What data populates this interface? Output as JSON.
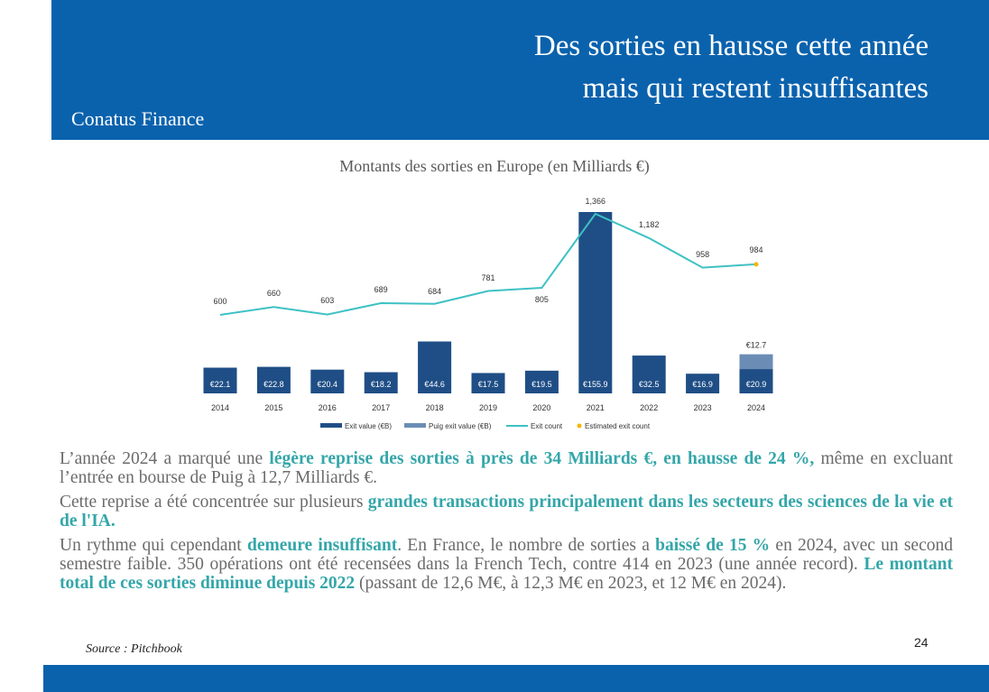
{
  "header": {
    "title_line1": "Des sorties en hausse cette année",
    "title_line2": "mais qui restent insuffisantes",
    "brand": "Conatus Finance"
  },
  "chart_data": {
    "type": "bar",
    "title": "Montants des sorties en Europe (en Milliards €)",
    "categories": [
      "2014",
      "2015",
      "2016",
      "2017",
      "2018",
      "2019",
      "2020",
      "2021",
      "2022",
      "2023",
      "2024"
    ],
    "series": [
      {
        "name": "Exit value (€B)",
        "kind": "bar",
        "color": "#1f4e86",
        "values": [
          22.1,
          22.8,
          20.4,
          18.2,
          44.6,
          17.5,
          19.5,
          155.9,
          32.5,
          16.9,
          20.9
        ],
        "labels": [
          "€22.1",
          "€22.8",
          "€20.4",
          "€18.2",
          "€44.6",
          "€17.5",
          "€19.5",
          "€155.9",
          "€32.5",
          "€16.9",
          "€20.9"
        ]
      },
      {
        "name": "Puig exit value (€B)",
        "kind": "bar-stacked",
        "color": "#6b8db5",
        "values": [
          0,
          0,
          0,
          0,
          0,
          0,
          0,
          0,
          0,
          0,
          12.7
        ],
        "labels": [
          "",
          "",
          "",
          "",
          "",
          "",
          "",
          "",
          "",
          "",
          "€12.7"
        ]
      },
      {
        "name": "Exit count",
        "kind": "line",
        "color": "#3ec1c4",
        "values": [
          600,
          660,
          603,
          689,
          684,
          781,
          805,
          1366,
          1182,
          958,
          984
        ],
        "labels": [
          "600",
          "660",
          "603",
          "689",
          "684",
          "781",
          "805",
          "1,366",
          "1,182",
          "958",
          "984"
        ]
      },
      {
        "name": "Estimated exit count",
        "kind": "point",
        "color": "#f2b705",
        "values": [
          null,
          null,
          null,
          null,
          null,
          null,
          null,
          null,
          null,
          null,
          984
        ]
      }
    ]
  },
  "body": {
    "p1_a": "L’année 2024 a marqué une ",
    "p1_b": "légère reprise des sorties à près de 34 Milliards €, en hausse de 24 %,",
    "p1_c": " même en excluant l’entrée en bourse de Puig à 12,7 Milliards €.",
    "p2_a": "Cette reprise a été concentrée sur plusieurs ",
    "p2_b": "grandes transactions principalement dans les secteurs des sciences de la vie et de l'IA.",
    "p3_a": "Un rythme qui cependant ",
    "p3_b": "demeure insuffisant",
    "p3_c": ". En France, le nombre de sorties a ",
    "p3_d": "baissé de 15 %",
    "p3_e": " en 2024,  avec un second semestre faible. 350 opérations ont été recensées dans la French Tech, contre 414 en 2023 (une année record). ",
    "p3_f": "Le montant total de ces sorties diminue depuis 2022",
    "p3_g": " (passant de 12,6 M€, à 12,3 M€ en 2023, et 12 M€ en 2024)."
  },
  "footer": {
    "source": "Source : Pitchbook",
    "page_number": "24"
  }
}
